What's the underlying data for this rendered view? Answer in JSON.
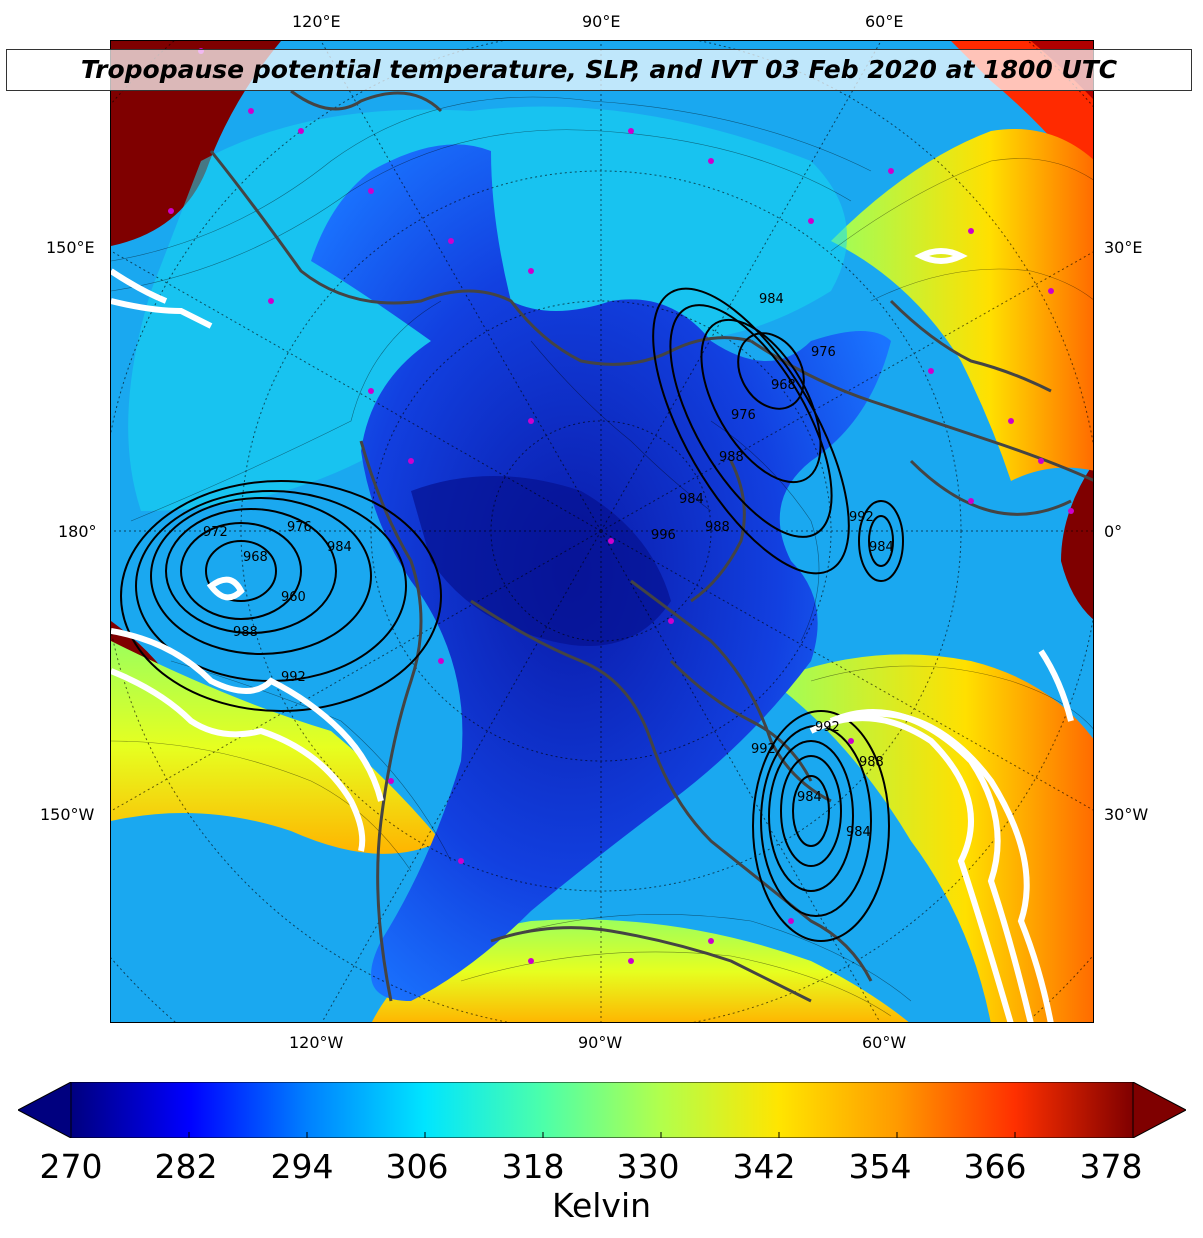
{
  "title": "Tropopause potential temperature, SLP, and IVT 03 Feb 2020 at 1800 UTC",
  "map": {
    "top_labels": [
      "120°E",
      "90°E",
      "60°E"
    ],
    "bottom_labels": [
      "120°W",
      "90°W",
      "60°W"
    ],
    "left_labels": [
      "150°E",
      "180°",
      "150°W"
    ],
    "right_labels": [
      "30°E",
      "0°",
      "30°W"
    ],
    "slp_labels": [
      "984",
      "976",
      "968",
      "976",
      "988",
      "984",
      "988",
      "972",
      "968",
      "976",
      "984",
      "960",
      "988",
      "992",
      "992",
      "984",
      "992",
      "984",
      "988",
      "992",
      "984",
      "996"
    ]
  },
  "colorbar": {
    "label": "Kelvin",
    "ticks": [
      "270",
      "282",
      "294",
      "306",
      "318",
      "330",
      "342",
      "354",
      "366",
      "378"
    ],
    "min": 270,
    "max": 378,
    "colors": [
      "#00007f",
      "#0000ff",
      "#0080ff",
      "#00e5ff",
      "#4cffaa",
      "#b2ff4c",
      "#ffe500",
      "#ff9a00",
      "#ff3000",
      "#7f0000"
    ]
  }
}
